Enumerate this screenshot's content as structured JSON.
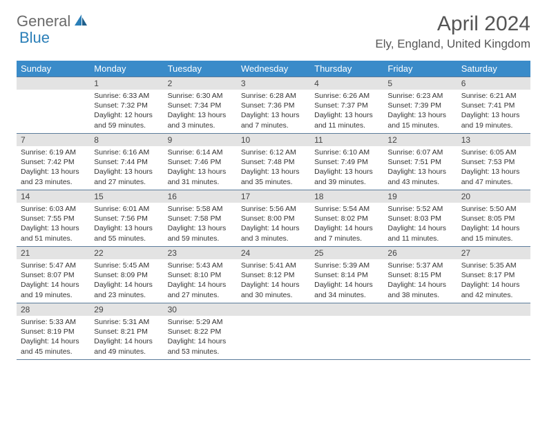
{
  "brand": {
    "name_a": "General",
    "name_b": "Blue"
  },
  "title": "April 2024",
  "location": "Ely, England, United Kingdom",
  "styling": {
    "page_bg": "#ffffff",
    "header_text_color": "#555555",
    "logo_gray": "#6a6a6a",
    "logo_blue": "#2b7fb8",
    "th_bg": "#3a8bc9",
    "th_fg": "#ffffff",
    "daynum_bg": "#e3e3e3",
    "cell_border": "#5a7a9a",
    "body_font_size_pt": 8,
    "title_font_size_pt": 22,
    "location_font_size_pt": 13
  },
  "weekdays": [
    "Sunday",
    "Monday",
    "Tuesday",
    "Wednesday",
    "Thursday",
    "Friday",
    "Saturday"
  ],
  "start_offset": 1,
  "days": [
    {
      "n": 1,
      "sunrise": "6:33 AM",
      "sunset": "7:32 PM",
      "daylight": "12 hours and 59 minutes."
    },
    {
      "n": 2,
      "sunrise": "6:30 AM",
      "sunset": "7:34 PM",
      "daylight": "13 hours and 3 minutes."
    },
    {
      "n": 3,
      "sunrise": "6:28 AM",
      "sunset": "7:36 PM",
      "daylight": "13 hours and 7 minutes."
    },
    {
      "n": 4,
      "sunrise": "6:26 AM",
      "sunset": "7:37 PM",
      "daylight": "13 hours and 11 minutes."
    },
    {
      "n": 5,
      "sunrise": "6:23 AM",
      "sunset": "7:39 PM",
      "daylight": "13 hours and 15 minutes."
    },
    {
      "n": 6,
      "sunrise": "6:21 AM",
      "sunset": "7:41 PM",
      "daylight": "13 hours and 19 minutes."
    },
    {
      "n": 7,
      "sunrise": "6:19 AM",
      "sunset": "7:42 PM",
      "daylight": "13 hours and 23 minutes."
    },
    {
      "n": 8,
      "sunrise": "6:16 AM",
      "sunset": "7:44 PM",
      "daylight": "13 hours and 27 minutes."
    },
    {
      "n": 9,
      "sunrise": "6:14 AM",
      "sunset": "7:46 PM",
      "daylight": "13 hours and 31 minutes."
    },
    {
      "n": 10,
      "sunrise": "6:12 AM",
      "sunset": "7:48 PM",
      "daylight": "13 hours and 35 minutes."
    },
    {
      "n": 11,
      "sunrise": "6:10 AM",
      "sunset": "7:49 PM",
      "daylight": "13 hours and 39 minutes."
    },
    {
      "n": 12,
      "sunrise": "6:07 AM",
      "sunset": "7:51 PM",
      "daylight": "13 hours and 43 minutes."
    },
    {
      "n": 13,
      "sunrise": "6:05 AM",
      "sunset": "7:53 PM",
      "daylight": "13 hours and 47 minutes."
    },
    {
      "n": 14,
      "sunrise": "6:03 AM",
      "sunset": "7:55 PM",
      "daylight": "13 hours and 51 minutes."
    },
    {
      "n": 15,
      "sunrise": "6:01 AM",
      "sunset": "7:56 PM",
      "daylight": "13 hours and 55 minutes."
    },
    {
      "n": 16,
      "sunrise": "5:58 AM",
      "sunset": "7:58 PM",
      "daylight": "13 hours and 59 minutes."
    },
    {
      "n": 17,
      "sunrise": "5:56 AM",
      "sunset": "8:00 PM",
      "daylight": "14 hours and 3 minutes."
    },
    {
      "n": 18,
      "sunrise": "5:54 AM",
      "sunset": "8:02 PM",
      "daylight": "14 hours and 7 minutes."
    },
    {
      "n": 19,
      "sunrise": "5:52 AM",
      "sunset": "8:03 PM",
      "daylight": "14 hours and 11 minutes."
    },
    {
      "n": 20,
      "sunrise": "5:50 AM",
      "sunset": "8:05 PM",
      "daylight": "14 hours and 15 minutes."
    },
    {
      "n": 21,
      "sunrise": "5:47 AM",
      "sunset": "8:07 PM",
      "daylight": "14 hours and 19 minutes."
    },
    {
      "n": 22,
      "sunrise": "5:45 AM",
      "sunset": "8:09 PM",
      "daylight": "14 hours and 23 minutes."
    },
    {
      "n": 23,
      "sunrise": "5:43 AM",
      "sunset": "8:10 PM",
      "daylight": "14 hours and 27 minutes."
    },
    {
      "n": 24,
      "sunrise": "5:41 AM",
      "sunset": "8:12 PM",
      "daylight": "14 hours and 30 minutes."
    },
    {
      "n": 25,
      "sunrise": "5:39 AM",
      "sunset": "8:14 PM",
      "daylight": "14 hours and 34 minutes."
    },
    {
      "n": 26,
      "sunrise": "5:37 AM",
      "sunset": "8:15 PM",
      "daylight": "14 hours and 38 minutes."
    },
    {
      "n": 27,
      "sunrise": "5:35 AM",
      "sunset": "8:17 PM",
      "daylight": "14 hours and 42 minutes."
    },
    {
      "n": 28,
      "sunrise": "5:33 AM",
      "sunset": "8:19 PM",
      "daylight": "14 hours and 45 minutes."
    },
    {
      "n": 29,
      "sunrise": "5:31 AM",
      "sunset": "8:21 PM",
      "daylight": "14 hours and 49 minutes."
    },
    {
      "n": 30,
      "sunrise": "5:29 AM",
      "sunset": "8:22 PM",
      "daylight": "14 hours and 53 minutes."
    }
  ],
  "labels": {
    "sunrise": "Sunrise:",
    "sunset": "Sunset:",
    "daylight": "Daylight:"
  }
}
